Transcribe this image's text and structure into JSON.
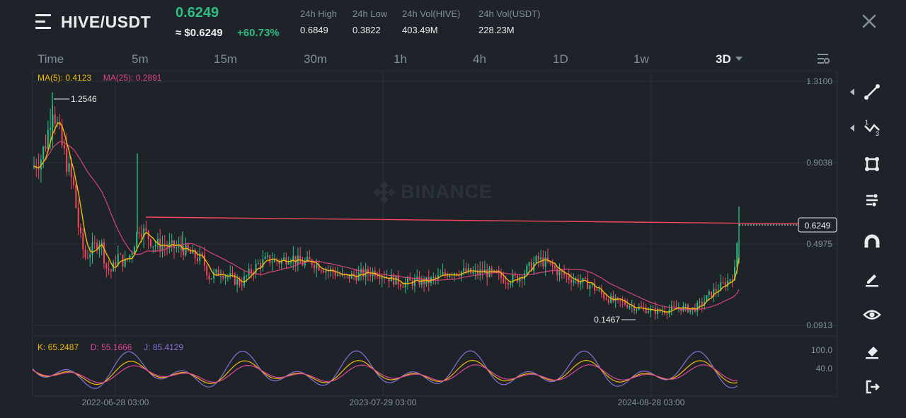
{
  "header": {
    "pair": "HIVE/USDT",
    "price": "0.6249",
    "fiat_price": "≈ $0.6249",
    "change": "+60.73%",
    "stats": [
      {
        "label": "24h High",
        "value": "0.6849"
      },
      {
        "label": "24h Low",
        "value": "0.3822"
      },
      {
        "label": "24h Vol(HIVE)",
        "value": "403.49M"
      },
      {
        "label": "24h Vol(USDT)",
        "value": "228.23M"
      }
    ]
  },
  "tabs": [
    "Time",
    "5m",
    "15m",
    "30m",
    "1h",
    "4h",
    "1D",
    "1w",
    "3D"
  ],
  "active_tab": "3D",
  "indicators": {
    "ma5": "MA(5): 0.4123",
    "ma25": "MA(25): 0.2891",
    "k": "K: 65.2487",
    "d": "D: 55.1666",
    "j": "J: 85.4129"
  },
  "price_axis": [
    "1.3100",
    "0.9038",
    "0.4975",
    "0.0913"
  ],
  "current_price_tag": "0.6249",
  "kdj_axis": [
    "100.0",
    "40.0"
  ],
  "time_axis": [
    "2022-06-28 03:00",
    "2023-07-29 03:00",
    "2024-08-28 03:00"
  ],
  "annotations": {
    "high": "1.2546",
    "low": "0.1467"
  },
  "watermark": "BINANCE",
  "toolbar": [
    "trend-line-icon",
    "fibonacci-icon",
    "rectangle-icon",
    "parallel-lines-icon",
    "magnet-icon",
    "pencil-icon",
    "visibility-icon",
    "eraser-icon",
    "exit-icon"
  ],
  "colors": {
    "up": "#2ebd85",
    "down": "#f6465d",
    "ma5": "#f0b90b",
    "ma25": "#d9437e",
    "k": "#f0b90b",
    "d": "#e0449a",
    "j": "#8b6fd6",
    "background": "#1e2329"
  },
  "chart_data": {
    "type": "candlestick",
    "ylim": [
      0.0913,
      1.31
    ],
    "kdj_ylim": [
      0,
      100
    ],
    "last_price": 0.6249,
    "high": 1.2546,
    "low": 0.1467
  }
}
